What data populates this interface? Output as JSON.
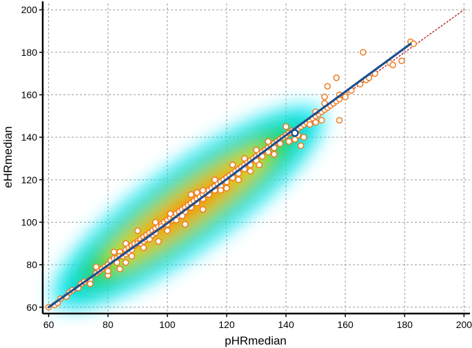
{
  "chart_data": {
    "type": "scatter",
    "title": "",
    "xlabel": "pHRmedian",
    "ylabel": "eHRmedian",
    "xlim": [
      58,
      202
    ],
    "ylim": [
      57,
      203
    ],
    "x_ticks": [
      "60",
      "80",
      "100",
      "120",
      "140",
      "160",
      "180",
      "200"
    ],
    "y_ticks": [
      "60",
      "80",
      "100",
      "120",
      "140",
      "160",
      "180",
      "200"
    ],
    "grid": true,
    "grid_style": "dashed",
    "density_overlay": {
      "present": true,
      "colormap": [
        "#00e5ff",
        "#00d7b0",
        "#39d300",
        "#ffe000",
        "#ff9500",
        "#ff5a00"
      ],
      "along": "identity line",
      "x_range": [
        62,
        152
      ]
    },
    "series": [
      {
        "style": "open-circle",
        "color": "#f07a1e",
        "points": [
          [
            60,
            60
          ],
          [
            62,
            61
          ],
          [
            63,
            62
          ],
          [
            64,
            64
          ],
          [
            66,
            65
          ],
          [
            67,
            67
          ],
          [
            68,
            68
          ],
          [
            70,
            69
          ],
          [
            71,
            71
          ],
          [
            72,
            72
          ],
          [
            74,
            73
          ],
          [
            76,
            76
          ],
          [
            77,
            77
          ],
          [
            78,
            78
          ],
          [
            79,
            79
          ],
          [
            80,
            80
          ],
          [
            81,
            82
          ],
          [
            82,
            83
          ],
          [
            83,
            83
          ],
          [
            83,
            81
          ],
          [
            84,
            86
          ],
          [
            84,
            84
          ],
          [
            85,
            84
          ],
          [
            86,
            87
          ],
          [
            86,
            85
          ],
          [
            87,
            88
          ],
          [
            87,
            86
          ],
          [
            88,
            89
          ],
          [
            88,
            87
          ],
          [
            89,
            89
          ],
          [
            89,
            90
          ],
          [
            90,
            91
          ],
          [
            90,
            90
          ],
          [
            91,
            92
          ],
          [
            91,
            90
          ],
          [
            92,
            93
          ],
          [
            92,
            91
          ],
          [
            93,
            94
          ],
          [
            93,
            92
          ],
          [
            94,
            95
          ],
          [
            94,
            93
          ],
          [
            95,
            96
          ],
          [
            95,
            94
          ],
          [
            96,
            97
          ],
          [
            96,
            95
          ],
          [
            97,
            98
          ],
          [
            98,
            99
          ],
          [
            98,
            98
          ],
          [
            99,
            100
          ],
          [
            100,
            101
          ],
          [
            100,
            99
          ],
          [
            101,
            102
          ],
          [
            102,
            103
          ],
          [
            102,
            101
          ],
          [
            103,
            104
          ],
          [
            104,
            105
          ],
          [
            104,
            103
          ],
          [
            105,
            106
          ],
          [
            106,
            107
          ],
          [
            106,
            105
          ],
          [
            107,
            108
          ],
          [
            108,
            109
          ],
          [
            108,
            107
          ],
          [
            109,
            110
          ],
          [
            110,
            111
          ],
          [
            110,
            109
          ],
          [
            111,
            112
          ],
          [
            112,
            113
          ],
          [
            112,
            111
          ],
          [
            113,
            114
          ],
          [
            114,
            115
          ],
          [
            114,
            113
          ],
          [
            115,
            116
          ],
          [
            116,
            117
          ],
          [
            116,
            115
          ],
          [
            117,
            118
          ],
          [
            118,
            119
          ],
          [
            118,
            117
          ],
          [
            119,
            120
          ],
          [
            120,
            121
          ],
          [
            120,
            119
          ],
          [
            121,
            122
          ],
          [
            122,
            123
          ],
          [
            122,
            121
          ],
          [
            123,
            124
          ],
          [
            124,
            125
          ],
          [
            124,
            123
          ],
          [
            125,
            126
          ],
          [
            126,
            127
          ],
          [
            126,
            125
          ],
          [
            127,
            128
          ],
          [
            128,
            129
          ],
          [
            128,
            127
          ],
          [
            129,
            130
          ],
          [
            130,
            131
          ],
          [
            130,
            129
          ],
          [
            131,
            132
          ],
          [
            132,
            133
          ],
          [
            132,
            131
          ],
          [
            133,
            134
          ],
          [
            134,
            135
          ],
          [
            134,
            133
          ],
          [
            135,
            136
          ],
          [
            136,
            137
          ],
          [
            136,
            135
          ],
          [
            137,
            138
          ],
          [
            138,
            139
          ],
          [
            138,
            137
          ],
          [
            139,
            140
          ],
          [
            140,
            141
          ],
          [
            141,
            142
          ],
          [
            142,
            143
          ],
          [
            143,
            143
          ],
          [
            144,
            144
          ],
          [
            145,
            145
          ],
          [
            146,
            146
          ],
          [
            147,
            147
          ],
          [
            148,
            148
          ],
          [
            149,
            149
          ],
          [
            150,
            150
          ],
          [
            151,
            151
          ],
          [
            152,
            152
          ],
          [
            153,
            153
          ],
          [
            154,
            154
          ],
          [
            155,
            155
          ],
          [
            156,
            156
          ],
          [
            157,
            157
          ],
          [
            158,
            158
          ],
          [
            160,
            160
          ],
          [
            162,
            162
          ],
          [
            165,
            165
          ],
          [
            167,
            167
          ],
          [
            168,
            168
          ],
          [
            170,
            170
          ],
          [
            175,
            175
          ],
          [
            182,
            185
          ],
          [
            74,
            71
          ],
          [
            76,
            79
          ],
          [
            80,
            75
          ],
          [
            80,
            77
          ],
          [
            82,
            86
          ],
          [
            84,
            78
          ],
          [
            86,
            81
          ],
          [
            86,
            90
          ],
          [
            88,
            84
          ],
          [
            90,
            96
          ],
          [
            92,
            88
          ],
          [
            94,
            92
          ],
          [
            96,
            100
          ],
          [
            97,
            91
          ],
          [
            100,
            96
          ],
          [
            101,
            104
          ],
          [
            103,
            101
          ],
          [
            105,
            103
          ],
          [
            106,
            99
          ],
          [
            108,
            113
          ],
          [
            110,
            114
          ],
          [
            112,
            115
          ],
          [
            112,
            106
          ],
          [
            116,
            120
          ],
          [
            118,
            115
          ],
          [
            120,
            116
          ],
          [
            122,
            127
          ],
          [
            124,
            120
          ],
          [
            126,
            130
          ],
          [
            128,
            124
          ],
          [
            130,
            134
          ],
          [
            131,
            127
          ],
          [
            134,
            138
          ],
          [
            136,
            132
          ],
          [
            140,
            145
          ],
          [
            141,
            138
          ],
          [
            142,
            142
          ],
          [
            143,
            139
          ],
          [
            145,
            136
          ],
          [
            146,
            140
          ],
          [
            144,
            141
          ],
          [
            148,
            146
          ],
          [
            150,
            152
          ],
          [
            152,
            148
          ],
          [
            150,
            147
          ],
          [
            153,
            156
          ],
          [
            153,
            159
          ],
          [
            154,
            164
          ],
          [
            157,
            168
          ],
          [
            158,
            148
          ],
          [
            158,
            160
          ],
          [
            160,
            159
          ],
          [
            166,
            180
          ],
          [
            176,
            174
          ],
          [
            179,
            176
          ],
          [
            183,
            184
          ]
        ]
      },
      {
        "style": "regression-line",
        "color": "#1c4f8f",
        "points": [
          [
            60,
            60
          ],
          [
            100,
            99.5
          ],
          [
            140,
            141
          ],
          [
            182,
            184
          ]
        ]
      },
      {
        "style": "identity-line",
        "color": "#b01010",
        "points": [
          [
            60,
            60
          ],
          [
            200,
            200
          ]
        ]
      }
    ],
    "highlight_point": {
      "x": 143,
      "y": 142,
      "color": "#1c4f8f"
    }
  }
}
